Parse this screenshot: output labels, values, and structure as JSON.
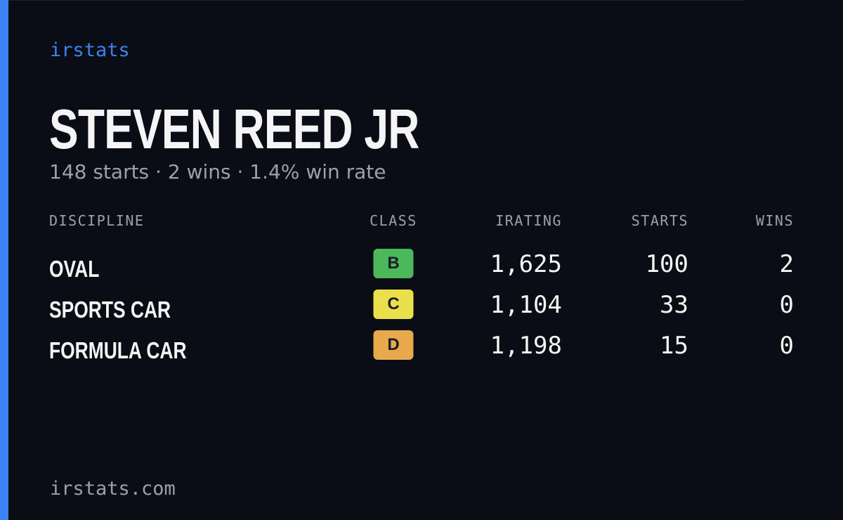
{
  "brand": "irstats",
  "driver": {
    "name": "STEVEN REED JR",
    "summary": "148 starts · 2 wins · 1.4% win rate"
  },
  "table": {
    "columns": [
      "DISCIPLINE",
      "CLASS",
      "IRATING",
      "STARTS",
      "WINS"
    ],
    "rows": [
      [
        "OVAL",
        "B",
        "1,625",
        "100",
        "2"
      ],
      [
        "SPORTS CAR",
        "C",
        "1,104",
        "33",
        "0"
      ],
      [
        "FORMULA CAR",
        "D",
        "1,198",
        "15",
        "0"
      ]
    ],
    "class_colors": {
      "B": "#4cb85c",
      "C": "#e9e04a",
      "D": "#e8a94c"
    }
  },
  "footer": "irstats.com"
}
